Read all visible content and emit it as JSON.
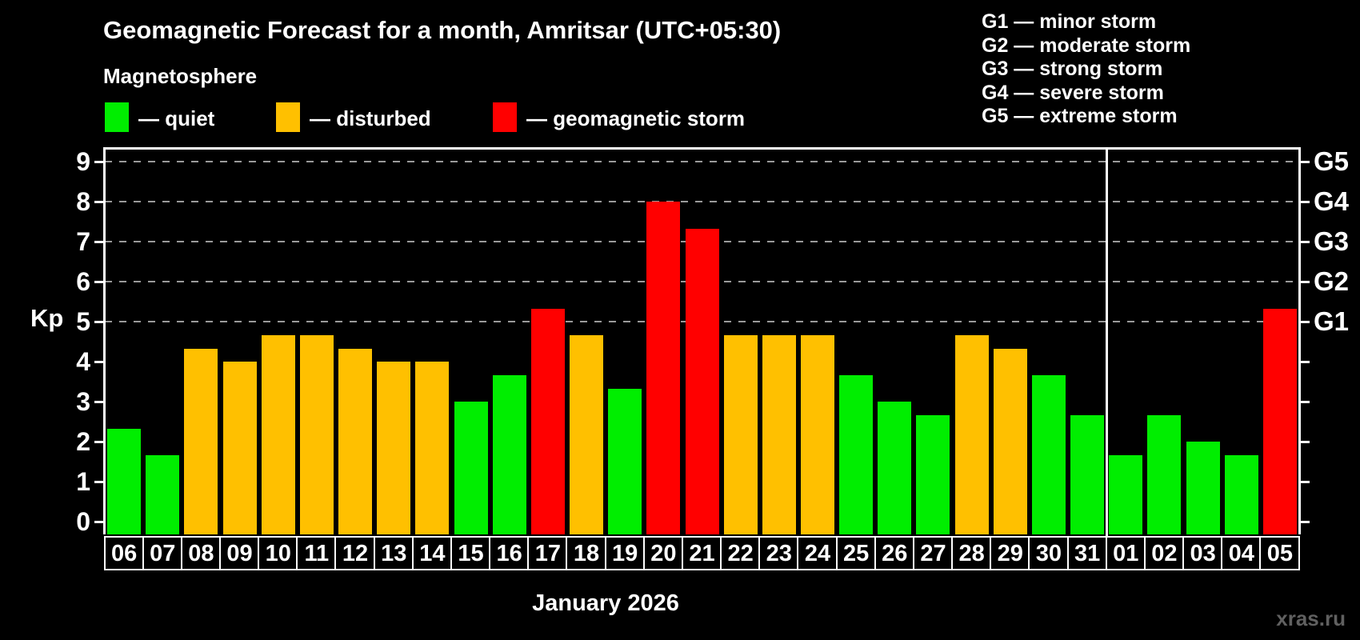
{
  "title": "Geomagnetic Forecast for a month, Amritsar (UTC+05:30)",
  "subtitle": "Magnetosphere",
  "legend": {
    "quiet_label": "— quiet",
    "disturbed_label": "— disturbed",
    "storm_label": "— geomagnetic storm"
  },
  "g_legend": [
    "G1 — minor storm",
    "G2 — moderate storm",
    "G3 — strong storm",
    "G4 — severe storm",
    "G5 — extreme storm"
  ],
  "watermark": "xras.ru",
  "colors": {
    "quiet": "#00ee00",
    "disturbed": "#ffc000",
    "storm": "#ff0000",
    "grid": "#9a9a9a",
    "axis": "#ffffff",
    "watermark": "#606060"
  },
  "chart_data": {
    "type": "bar",
    "title": "Geomagnetic Forecast for a month, Amritsar (UTC+05:30)",
    "ylabel": "Kp",
    "xlabel": "January 2026",
    "ylim": [
      0,
      9
    ],
    "y_ticks": [
      0,
      1,
      2,
      3,
      4,
      5,
      6,
      7,
      8,
      9
    ],
    "grid_kp": [
      5,
      6,
      7,
      8,
      9
    ],
    "grid_style": "dashed, only at storm levels G1–G5",
    "legend_position": "top",
    "right_axis_labels": [
      {
        "label": "G1",
        "kp": 5
      },
      {
        "label": "G2",
        "kp": 6
      },
      {
        "label": "G3",
        "kp": 7
      },
      {
        "label": "G4",
        "kp": 8
      },
      {
        "label": "G5",
        "kp": 9
      }
    ],
    "categories": [
      "06",
      "07",
      "08",
      "09",
      "10",
      "11",
      "12",
      "13",
      "14",
      "15",
      "16",
      "17",
      "18",
      "19",
      "20",
      "21",
      "22",
      "23",
      "24",
      "25",
      "26",
      "27",
      "28",
      "29",
      "30",
      "31",
      "01",
      "02",
      "03",
      "04",
      "05"
    ],
    "values": [
      2.33,
      1.67,
      4.33,
      4.0,
      4.67,
      4.67,
      4.33,
      4.0,
      4.0,
      3.0,
      3.67,
      5.33,
      4.67,
      3.33,
      8.0,
      7.33,
      4.67,
      4.67,
      4.67,
      3.67,
      3.0,
      2.67,
      4.67,
      4.33,
      3.67,
      2.67,
      1.67,
      2.67,
      2.0,
      1.67,
      5.33
    ],
    "status": [
      "quiet",
      "quiet",
      "disturbed",
      "disturbed",
      "disturbed",
      "disturbed",
      "disturbed",
      "disturbed",
      "disturbed",
      "quiet",
      "quiet",
      "storm",
      "disturbed",
      "quiet",
      "storm",
      "storm",
      "disturbed",
      "disturbed",
      "disturbed",
      "quiet",
      "quiet",
      "quiet",
      "disturbed",
      "disturbed",
      "quiet",
      "quiet",
      "quiet",
      "quiet",
      "quiet",
      "quiet",
      "storm"
    ],
    "month_split_after_index": 25
  }
}
